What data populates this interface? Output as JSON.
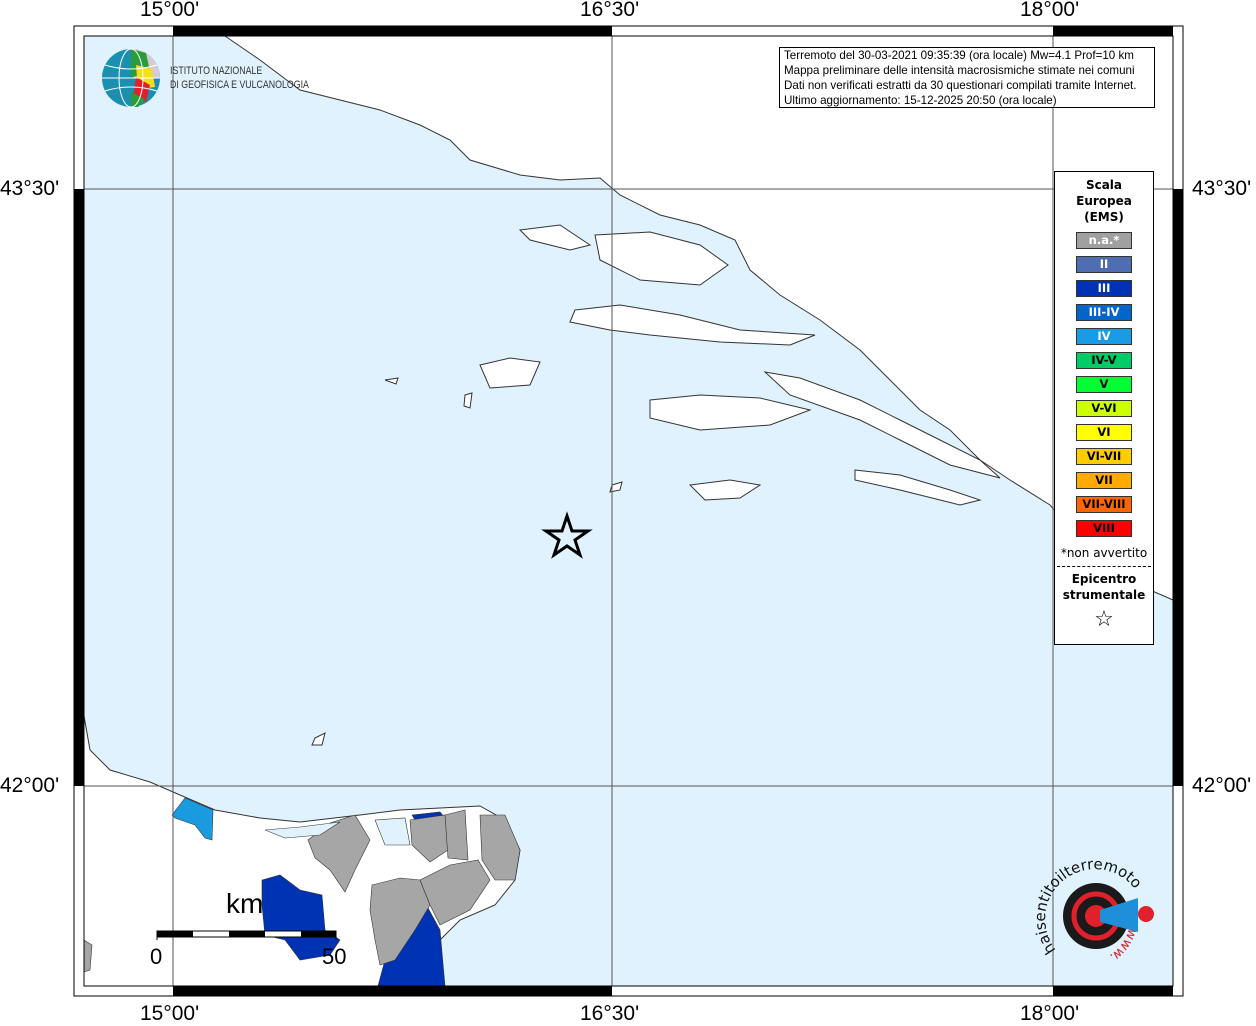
{
  "map": {
    "lon_ticks": [
      "15°00'",
      "16°30'",
      "18°00'"
    ],
    "lat_ticks": [
      "43°30'",
      "42°00'"
    ],
    "colors": {
      "sea": "#e0f2fd",
      "land": "#ffffff",
      "na": "#a6a6a6",
      "III": "#0033b3",
      "IV": "#1a9be0"
    },
    "epicenter_icon": "star-icon"
  },
  "info": {
    "lines": [
      "Terremoto del 30-03-2021 09:35:39 (ora locale) Mw=4.1 Prof=10 km",
      "Mappa preliminare delle intensità macrosismiche stimate nei comuni",
      "Dati non verificati estratti da 30 questionari compilati tramite Internet.",
      "Ultimo aggiornamento: 15-12-2025 20:50 (ora locale)"
    ]
  },
  "logo": {
    "ingv_line1": "ISTITUTO NAZIONALE",
    "ingv_line2": "DI GEOFISICA E VULCANOLOGIA",
    "hst": "www.haisentitoilterremoto.it"
  },
  "legend": {
    "title1": "Scala",
    "title2": "Europea",
    "title3": "(EMS)",
    "items": [
      {
        "label": "n.a.*",
        "color": "#a0a0a0",
        "text": "#ffffff"
      },
      {
        "label": "II",
        "color": "#4f6db3",
        "text": "#ffffff"
      },
      {
        "label": "III",
        "color": "#0033b3",
        "text": "#ffffff"
      },
      {
        "label": "III-IV",
        "color": "#0066cc",
        "text": "#ffffff"
      },
      {
        "label": "IV",
        "color": "#1a9be6",
        "text": "#ffffff"
      },
      {
        "label": "IV-V",
        "color": "#00cc66",
        "text": "#000000"
      },
      {
        "label": "V",
        "color": "#00ff33",
        "text": "#000000"
      },
      {
        "label": "V-VI",
        "color": "#ccff00",
        "text": "#000000"
      },
      {
        "label": "VI",
        "color": "#ffff00",
        "text": "#000000"
      },
      {
        "label": "VI-VII",
        "color": "#ffcc00",
        "text": "#000000"
      },
      {
        "label": "VII",
        "color": "#ffaa00",
        "text": "#000000"
      },
      {
        "label": "VII-VIII",
        "color": "#ff6600",
        "text": "#000000"
      },
      {
        "label": "VIII",
        "color": "#ff0000",
        "text": "#000000"
      }
    ],
    "note": "*non avvertito",
    "epi1": "Epicentro",
    "epi2": "strumentale",
    "epi_star": "☆"
  },
  "scale": {
    "unit": "km",
    "min": "0",
    "max": "50"
  }
}
